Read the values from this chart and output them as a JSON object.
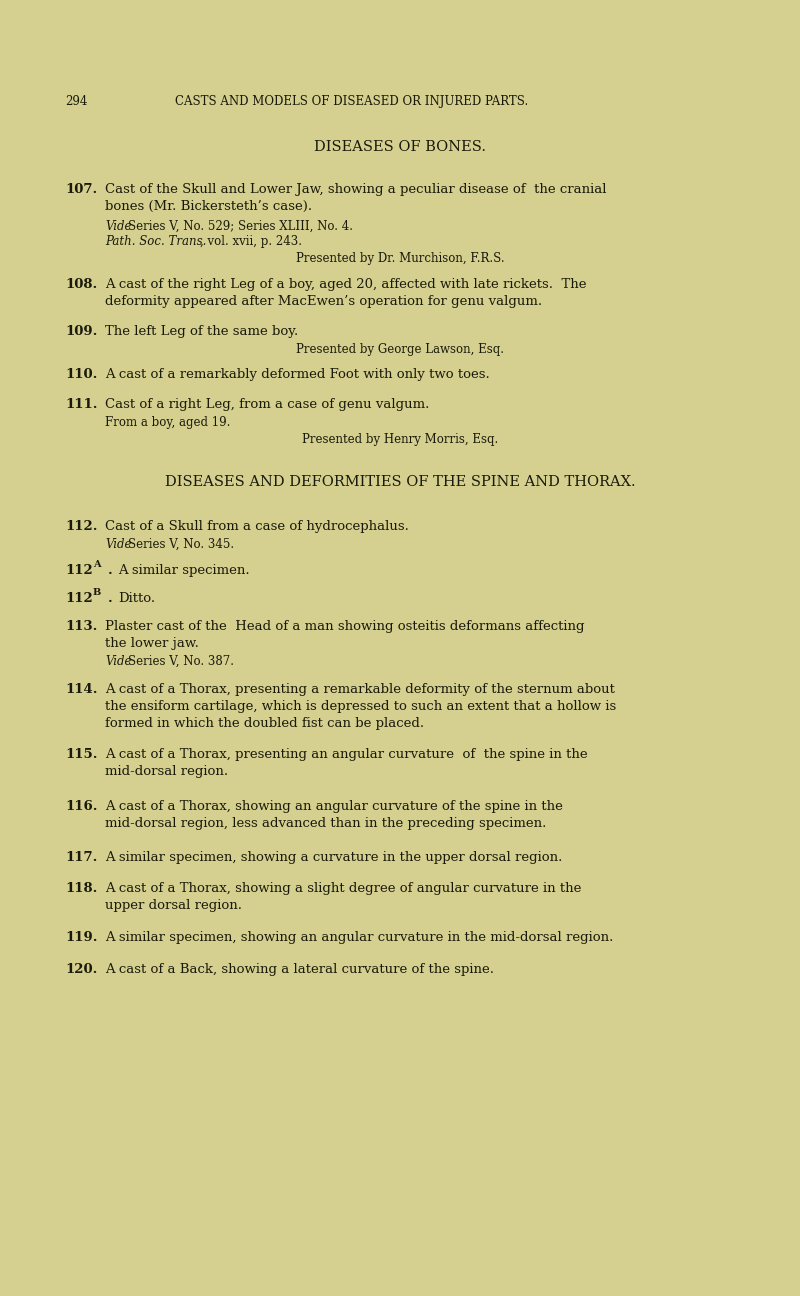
{
  "background_color": "#d6d090",
  "text_color": "#1a1a0a",
  "header_number": "294",
  "header_title": "CASTS AND MODELS OF DISEASED OR INJURED PARTS.",
  "section1_title": "DISEASES OF BONES.",
  "section2_title": "DISEASES AND DEFORMITIES OF THE SPINE AND THORAX.",
  "body_fs": 9.5,
  "sub_fs": 8.5,
  "header_fs": 8.5,
  "title_fs": 10.5
}
